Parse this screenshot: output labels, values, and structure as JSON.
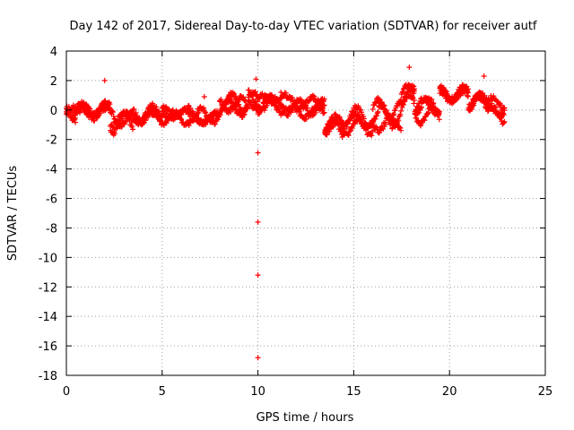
{
  "chart_data": {
    "type": "scatter",
    "title": "Day 142 of 2017, Sidereal Day-to-day VTEC variation (SDTVAR) for receiver autf",
    "xlabel": "GPS time / hours",
    "ylabel": "SDTVAR / TECUs",
    "xlim": [
      0,
      25
    ],
    "ylim": [
      -18,
      4
    ],
    "xticks": [
      0,
      5,
      10,
      15,
      20,
      25
    ],
    "yticks": [
      -18,
      -16,
      -14,
      -12,
      -10,
      -8,
      -6,
      -4,
      -2,
      0,
      2,
      4
    ],
    "grid": true,
    "marker": "plus",
    "color": "#ff0000",
    "series": [
      {
        "name": "autf",
        "segments": [
          {
            "t0": 0.0,
            "t1": 0.5,
            "base": -0.6,
            "spread": 1.2
          },
          {
            "t0": 0.5,
            "t1": 1.8,
            "base": 0.1,
            "spread": 1.0
          },
          {
            "t0": 1.8,
            "t1": 2.3,
            "base": 0.2,
            "spread": 0.6
          },
          {
            "t0": 2.3,
            "t1": 3.5,
            "base": -0.8,
            "spread": 1.3
          },
          {
            "t0": 3.5,
            "t1": 5.0,
            "base": -0.3,
            "spread": 1.0
          },
          {
            "t0": 5.0,
            "t1": 6.5,
            "base": -0.2,
            "spread": 0.9
          },
          {
            "t0": 6.5,
            "t1": 8.0,
            "base": -0.2,
            "spread": 1.0
          },
          {
            "t0": 8.0,
            "t1": 9.5,
            "base": 0.5,
            "spread": 1.1
          },
          {
            "t0": 9.5,
            "t1": 10.0,
            "base": 1.0,
            "spread": 1.0
          },
          {
            "t0": 10.0,
            "t1": 11.5,
            "base": 0.2,
            "spread": 1.3
          },
          {
            "t0": 11.5,
            "t1": 13.5,
            "base": 0.2,
            "spread": 0.9
          },
          {
            "t0": 13.5,
            "t1": 14.5,
            "base": -1.2,
            "spread": 1.3
          },
          {
            "t0": 14.5,
            "t1": 16.0,
            "base": -1.0,
            "spread": 1.6
          },
          {
            "t0": 16.0,
            "t1": 17.5,
            "base": -0.4,
            "spread": 1.5
          },
          {
            "t0": 17.5,
            "t1": 18.2,
            "base": 1.0,
            "spread": 1.6
          },
          {
            "t0": 18.2,
            "t1": 19.5,
            "base": -0.1,
            "spread": 1.3
          },
          {
            "t0": 19.5,
            "t1": 21.0,
            "base": 1.0,
            "spread": 1.0
          },
          {
            "t0": 21.0,
            "t1": 22.0,
            "base": 0.6,
            "spread": 1.0
          },
          {
            "t0": 22.0,
            "t1": 22.9,
            "base": 0.2,
            "spread": 1.2
          }
        ],
        "isolated_points": [
          {
            "x": 2.0,
            "y": 2.0
          },
          {
            "x": 7.2,
            "y": 0.9
          },
          {
            "x": 9.9,
            "y": 2.1
          },
          {
            "x": 10.0,
            "y": -2.9
          },
          {
            "x": 10.0,
            "y": -7.6
          },
          {
            "x": 10.0,
            "y": -11.2
          },
          {
            "x": 10.0,
            "y": -16.8
          },
          {
            "x": 11.2,
            "y": 1.2
          },
          {
            "x": 17.9,
            "y": 2.9
          },
          {
            "x": 21.8,
            "y": 2.3
          }
        ]
      }
    ]
  }
}
